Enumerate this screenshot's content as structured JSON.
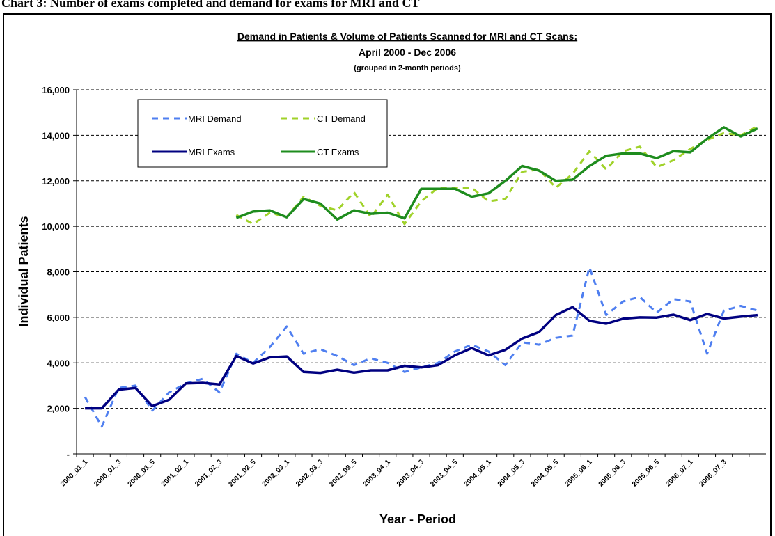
{
  "header": "Chart 3: Number of exams completed and demand for exams for MRI and CT",
  "chart_data": {
    "type": "line",
    "title": "Demand in Patients & Volume of Patients Scanned for MRI and CT Scans:",
    "subtitle": "April 2000 - Dec 2006",
    "note": "(grouped in 2-month periods)",
    "x_label": "Year - Period",
    "y_label": "Individual Patients",
    "categories": [
      "2000_01_1",
      null,
      "2000_01_3",
      null,
      "2000_01_5",
      null,
      "2001_02_1",
      null,
      "2001_02_3",
      null,
      "2001_02_5",
      null,
      "2002_03_1",
      null,
      "2002_03_3",
      null,
      "2002_03_5",
      null,
      "2003_04_1",
      null,
      "2003_04_3",
      null,
      "2003_04_5",
      null,
      "2004_05_1",
      null,
      "2004_05_3",
      null,
      "2004_05_5",
      null,
      "2005_06_1",
      null,
      "2005_06_3",
      null,
      "2005_06_5",
      null,
      "2006_07_1",
      null,
      "2006_07_3",
      null,
      null
    ],
    "ylim": [
      0,
      16000
    ],
    "yticks": [
      {
        "value": 0,
        "label": "-"
      },
      {
        "value": 2000,
        "label": "2,000"
      },
      {
        "value": 4000,
        "label": "4,000"
      },
      {
        "value": 6000,
        "label": "6,000"
      },
      {
        "value": 8000,
        "label": "8,000"
      },
      {
        "value": 10000,
        "label": "10,000"
      },
      {
        "value": 12000,
        "label": "12,000"
      },
      {
        "value": 14000,
        "label": "14,000"
      },
      {
        "value": 16000,
        "label": "16,000"
      }
    ],
    "grid": true,
    "legend": "upper-left",
    "series": [
      {
        "name": "MRI Demand",
        "color": "#4f7ff0",
        "dashed": true,
        "values": [
          2500,
          1200,
          2900,
          3000,
          1900,
          2700,
          3100,
          3300,
          2700,
          4400,
          4000,
          4700,
          5600,
          4400,
          4600,
          4300,
          3900,
          4200,
          4000,
          3600,
          3800,
          4000,
          4500,
          4800,
          4500,
          3900,
          4900,
          4800,
          5100,
          5200,
          8200,
          6100,
          6700,
          6900,
          6200,
          6800,
          6700,
          4400,
          6300,
          6500,
          6300
        ]
      },
      {
        "name": "CT Demand",
        "color": "#a0d22a",
        "dashed": true,
        "values": [
          null,
          null,
          null,
          null,
          null,
          null,
          null,
          null,
          null,
          10500,
          10100,
          10600,
          10400,
          11300,
          10900,
          10700,
          11500,
          10400,
          11400,
          10100,
          11100,
          11700,
          11700,
          11700,
          11100,
          11200,
          12400,
          12500,
          11700,
          12300,
          13300,
          12500,
          13300,
          13500,
          12600,
          12900,
          13400,
          13800,
          14100,
          14000,
          14400
        ]
      },
      {
        "name": "MRI Exams",
        "color": "#000080",
        "dashed": false,
        "values": [
          2000,
          2000,
          2820,
          2900,
          2100,
          2380,
          3100,
          3120,
          3050,
          4300,
          3970,
          4240,
          4280,
          3600,
          3560,
          3700,
          3570,
          3670,
          3670,
          3870,
          3800,
          3900,
          4330,
          4650,
          4330,
          4570,
          5070,
          5350,
          6100,
          6450,
          5850,
          5720,
          5940,
          6000,
          5990,
          6120,
          5880,
          6150,
          5950,
          6030,
          6100
        ]
      },
      {
        "name": "CT Exams",
        "color": "#1e8c1e",
        "dashed": false,
        "values": [
          null,
          null,
          null,
          null,
          null,
          null,
          null,
          null,
          null,
          10370,
          10650,
          10700,
          10400,
          11200,
          11000,
          10300,
          10700,
          10550,
          10600,
          10350,
          11650,
          11650,
          11650,
          11300,
          11450,
          12000,
          12650,
          12450,
          12000,
          12050,
          12650,
          13100,
          13200,
          13200,
          13000,
          13300,
          13250,
          13850,
          14350,
          13950,
          14300
        ]
      }
    ]
  }
}
